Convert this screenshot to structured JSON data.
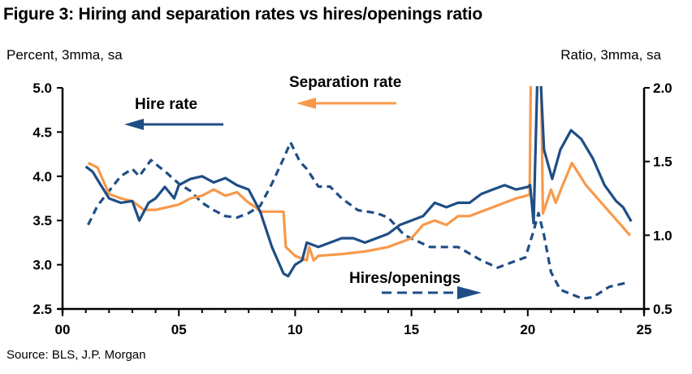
{
  "chart_data": {
    "type": "line",
    "title": "Figure 3: Hiring and separation rates vs hires/openings ratio",
    "left_axis_label": "Percent, 3mma, sa",
    "right_axis_label": "Ratio, 3mma, sa",
    "source": "Source: BLS, J.P. Morgan",
    "xlim": [
      2000,
      2025
    ],
    "ylim_left": [
      2.5,
      5.0
    ],
    "ylim_right": [
      0.5,
      2.0
    ],
    "x_ticks": [
      {
        "v": 2000,
        "label": "00"
      },
      {
        "v": 2005,
        "label": "05"
      },
      {
        "v": 2010,
        "label": "10"
      },
      {
        "v": 2015,
        "label": "15"
      },
      {
        "v": 2020,
        "label": "20"
      },
      {
        "v": 2025,
        "label": "25"
      }
    ],
    "y_ticks_left": [
      "2.5",
      "3.0",
      "3.5",
      "4.0",
      "4.5",
      "5.0"
    ],
    "y_ticks_right": [
      "0.5",
      "1.0",
      "1.5",
      "2.0"
    ],
    "grid": false,
    "colors": {
      "hire": "#1f4e86",
      "separation": "#f7994a",
      "ratio": "#1f4e86"
    },
    "annotations": {
      "hire": "Hire rate",
      "separation": "Separation rate",
      "ratio": "Hires/openings"
    },
    "series": [
      {
        "name": "Hire rate",
        "axis": "left",
        "style": "solid",
        "points": [
          [
            2001.0,
            4.11
          ],
          [
            2001.3,
            4.05
          ],
          [
            2001.6,
            3.92
          ],
          [
            2002.0,
            3.75
          ],
          [
            2002.5,
            3.7
          ],
          [
            2003.0,
            3.72
          ],
          [
            2003.3,
            3.5
          ],
          [
            2003.7,
            3.7
          ],
          [
            2004.0,
            3.75
          ],
          [
            2004.4,
            3.88
          ],
          [
            2004.8,
            3.75
          ],
          [
            2005.0,
            3.9
          ],
          [
            2005.5,
            3.97
          ],
          [
            2006.0,
            4.0
          ],
          [
            2006.5,
            3.93
          ],
          [
            2007.0,
            3.98
          ],
          [
            2007.5,
            3.9
          ],
          [
            2008.0,
            3.85
          ],
          [
            2008.5,
            3.6
          ],
          [
            2009.0,
            3.2
          ],
          [
            2009.5,
            2.9
          ],
          [
            2009.7,
            2.87
          ],
          [
            2010.0,
            3.0
          ],
          [
            2010.3,
            3.05
          ],
          [
            2010.5,
            3.25
          ],
          [
            2011.0,
            3.2
          ],
          [
            2011.5,
            3.25
          ],
          [
            2012.0,
            3.3
          ],
          [
            2012.5,
            3.3
          ],
          [
            2013.0,
            3.25
          ],
          [
            2013.5,
            3.3
          ],
          [
            2014.0,
            3.35
          ],
          [
            2014.5,
            3.45
          ],
          [
            2015.0,
            3.5
          ],
          [
            2015.5,
            3.55
          ],
          [
            2016.0,
            3.7
          ],
          [
            2016.5,
            3.65
          ],
          [
            2017.0,
            3.7
          ],
          [
            2017.5,
            3.7
          ],
          [
            2018.0,
            3.8
          ],
          [
            2018.5,
            3.85
          ],
          [
            2019.0,
            3.9
          ],
          [
            2019.5,
            3.85
          ],
          [
            2020.0,
            3.88
          ],
          [
            2020.1,
            3.9
          ],
          [
            2020.25,
            3.47
          ],
          [
            2020.46,
            5.6
          ],
          [
            2020.7,
            4.3
          ],
          [
            2021.05,
            3.97
          ],
          [
            2021.4,
            4.3
          ],
          [
            2021.86,
            4.52
          ],
          [
            2022.3,
            4.42
          ],
          [
            2022.8,
            4.2
          ],
          [
            2023.3,
            3.9
          ],
          [
            2023.8,
            3.72
          ],
          [
            2024.1,
            3.65
          ],
          [
            2024.45,
            3.49
          ]
        ]
      },
      {
        "name": "Separation rate",
        "axis": "left",
        "style": "solid",
        "points": [
          [
            2001.1,
            4.15
          ],
          [
            2001.5,
            4.1
          ],
          [
            2002.0,
            3.8
          ],
          [
            2002.5,
            3.75
          ],
          [
            2003.0,
            3.72
          ],
          [
            2003.5,
            3.62
          ],
          [
            2004.0,
            3.62
          ],
          [
            2004.5,
            3.65
          ],
          [
            2005.0,
            3.68
          ],
          [
            2005.5,
            3.75
          ],
          [
            2006.0,
            3.78
          ],
          [
            2006.5,
            3.85
          ],
          [
            2007.0,
            3.78
          ],
          [
            2007.5,
            3.82
          ],
          [
            2008.0,
            3.7
          ],
          [
            2008.3,
            3.65
          ],
          [
            2008.5,
            3.6
          ],
          [
            2009.5,
            3.6
          ],
          [
            2009.6,
            3.2
          ],
          [
            2010.0,
            3.1
          ],
          [
            2010.5,
            3.05
          ],
          [
            2010.6,
            3.2
          ],
          [
            2010.8,
            3.05
          ],
          [
            2011.0,
            3.1
          ],
          [
            2012.0,
            3.12
          ],
          [
            2013.0,
            3.15
          ],
          [
            2014.0,
            3.2
          ],
          [
            2014.5,
            3.25
          ],
          [
            2015.0,
            3.3
          ],
          [
            2015.5,
            3.45
          ],
          [
            2016.0,
            3.5
          ],
          [
            2016.5,
            3.45
          ],
          [
            2017.0,
            3.55
          ],
          [
            2017.5,
            3.55
          ],
          [
            2018.0,
            3.6
          ],
          [
            2018.5,
            3.65
          ],
          [
            2019.0,
            3.7
          ],
          [
            2019.5,
            3.75
          ],
          [
            2020.08,
            3.79
          ],
          [
            2020.15,
            5.6
          ],
          [
            2020.55,
            5.6
          ],
          [
            2020.65,
            3.58
          ],
          [
            2021.0,
            3.85
          ],
          [
            2021.2,
            3.7
          ],
          [
            2021.5,
            3.9
          ],
          [
            2021.9,
            4.15
          ],
          [
            2022.5,
            3.9
          ],
          [
            2023.0,
            3.75
          ],
          [
            2023.5,
            3.6
          ],
          [
            2024.0,
            3.45
          ],
          [
            2024.4,
            3.33
          ]
        ]
      },
      {
        "name": "Hires/openings",
        "axis": "right",
        "style": "dashed",
        "points": [
          [
            2001.1,
            1.07
          ],
          [
            2001.5,
            1.2
          ],
          [
            2002.0,
            1.3
          ],
          [
            2002.5,
            1.4
          ],
          [
            2003.0,
            1.45
          ],
          [
            2003.3,
            1.4
          ],
          [
            2003.8,
            1.51
          ],
          [
            2004.5,
            1.42
          ],
          [
            2005.0,
            1.35
          ],
          [
            2005.5,
            1.3
          ],
          [
            2006.0,
            1.22
          ],
          [
            2006.5,
            1.17
          ],
          [
            2007.0,
            1.13
          ],
          [
            2007.5,
            1.12
          ],
          [
            2008.0,
            1.15
          ],
          [
            2008.5,
            1.2
          ],
          [
            2009.0,
            1.35
          ],
          [
            2009.5,
            1.52
          ],
          [
            2009.8,
            1.63
          ],
          [
            2010.2,
            1.5
          ],
          [
            2010.5,
            1.45
          ],
          [
            2011.0,
            1.33
          ],
          [
            2011.5,
            1.33
          ],
          [
            2012.0,
            1.25
          ],
          [
            2012.7,
            1.17
          ],
          [
            2013.5,
            1.15
          ],
          [
            2014.0,
            1.12
          ],
          [
            2014.7,
            1.0
          ],
          [
            2015.8,
            0.92
          ],
          [
            2017.0,
            0.92
          ],
          [
            2018.0,
            0.83
          ],
          [
            2018.7,
            0.78
          ],
          [
            2019.9,
            0.85
          ],
          [
            2020.25,
            1.03
          ],
          [
            2020.46,
            1.15
          ],
          [
            2020.7,
            1.0
          ],
          [
            2021.0,
            0.75
          ],
          [
            2021.4,
            0.63
          ],
          [
            2022.35,
            0.57
          ],
          [
            2022.8,
            0.58
          ],
          [
            2023.5,
            0.65
          ],
          [
            2024.3,
            0.68
          ]
        ]
      }
    ]
  }
}
